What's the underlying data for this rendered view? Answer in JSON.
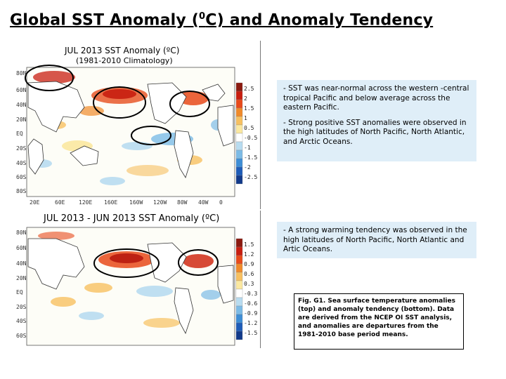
{
  "title": {
    "main": "Global SST Anomaly (",
    "sup": "0",
    "rest": "C) and Anomaly Tendency"
  },
  "top_map": {
    "title_line1": "JUL 2013  SST Anomaly (ºC)",
    "title_line2": "(1981-2010 Climatology)",
    "lat_labels": [
      "80N",
      "60N",
      "40N",
      "20N",
      "EQ",
      "20S",
      "40S",
      "60S",
      "80S"
    ],
    "lon_labels": [
      "20E",
      "60E",
      "120E",
      "160E",
      "160W",
      "120W",
      "80W",
      "40W",
      "0"
    ],
    "colorbar_labels": [
      "2.5",
      "2",
      "1.5",
      "1",
      "0.5",
      "-0.5",
      "-1",
      "-1.5",
      "-2",
      "-2.5"
    ],
    "colorbar_colors": [
      "#8b1a10",
      "#c81e10",
      "#e84a1a",
      "#f08a2a",
      "#f7c060",
      "#fbe8a0",
      "#ffffff",
      "#b8dcf0",
      "#7cbbe6",
      "#3e8ed6",
      "#1e5cb8",
      "#123a8a"
    ]
  },
  "bottom_map": {
    "title": "JUL 2013 - JUN 2013 SST Anomaly (ºC)",
    "lat_labels": [
      "80N",
      "60N",
      "40N",
      "20N",
      "EQ",
      "20S",
      "40S",
      "60S"
    ],
    "colorbar_labels": [
      "1.5",
      "1.2",
      "0.9",
      "0.6",
      "0.3",
      "-0.3",
      "-0.6",
      "-0.9",
      "-1.2",
      "-1.5"
    ]
  },
  "text_top": [
    "- SST was near-normal across the western -central tropical Pacific and below average across the eastern Pacific.",
    "- Strong positive SST anomalies were observed in the high latitudes of North Pacific, North Atlantic, and Arctic Oceans."
  ],
  "text_bottom": [
    "- A strong warming tendency was observed in the high latitudes of North Pacific, North Atlantic and Artic Oceans."
  ],
  "caption": "Fig. G1. Sea surface temperature anomalies (top) and anomaly tendency (bottom). Data are derived from the NCEP OI SST analysis, and anomalies are departures from the 1981-2010 base period means."
}
